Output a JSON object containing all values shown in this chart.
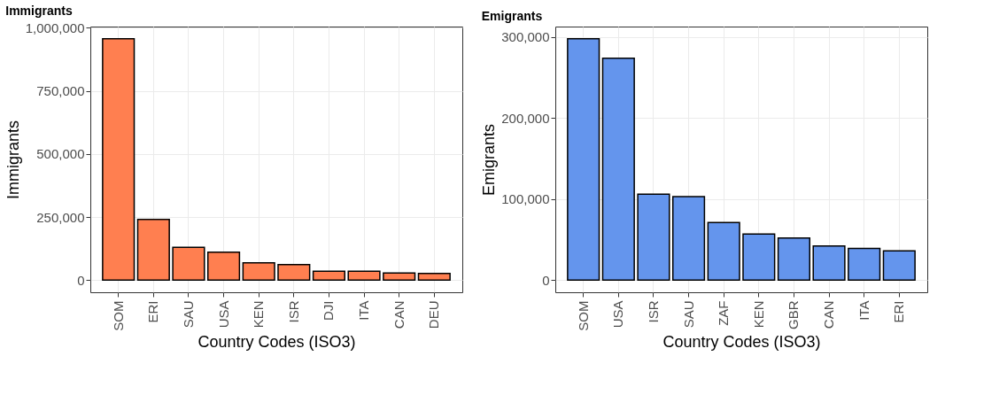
{
  "chart_data": [
    {
      "type": "bar",
      "title": "Immigrants",
      "xlabel": "Country Codes (ISO3)",
      "ylabel": "Immigrants",
      "categories": [
        "SOM",
        "ERI",
        "SAU",
        "USA",
        "KEN",
        "ISR",
        "DJI",
        "ITA",
        "CAN",
        "DEU"
      ],
      "values": [
        957000,
        241000,
        130000,
        111000,
        69000,
        62000,
        35000,
        35000,
        28000,
        27000
      ],
      "color": "#ff7f50",
      "ylim": [
        -48000,
        1005000
      ],
      "yticks": [
        {
          "value": 0,
          "label": "0"
        },
        {
          "value": 250000,
          "label": "250,000"
        },
        {
          "value": 500000,
          "label": "500,000"
        },
        {
          "value": 750000,
          "label": "750,000"
        },
        {
          "value": 1000000,
          "label": "1,000,000"
        }
      ],
      "grid": true
    },
    {
      "type": "bar",
      "title": "Emigrants",
      "xlabel": "Country Codes (ISO3)",
      "ylabel": "Emigrants",
      "categories": [
        "SOM",
        "USA",
        "ISR",
        "SAU",
        "ZAF",
        "KEN",
        "GBR",
        "CAN",
        "ITA",
        "ERI"
      ],
      "values": [
        298000,
        274000,
        106000,
        103000,
        71000,
        57000,
        52000,
        42000,
        39000,
        36000
      ],
      "color": "#6495ed",
      "ylim": [
        -15000,
        313000
      ],
      "yticks": [
        {
          "value": 0,
          "label": "0"
        },
        {
          "value": 100000,
          "label": "100,000"
        },
        {
          "value": 200000,
          "label": "200,000"
        },
        {
          "value": 300000,
          "label": "300,000"
        }
      ],
      "grid": true
    }
  ]
}
